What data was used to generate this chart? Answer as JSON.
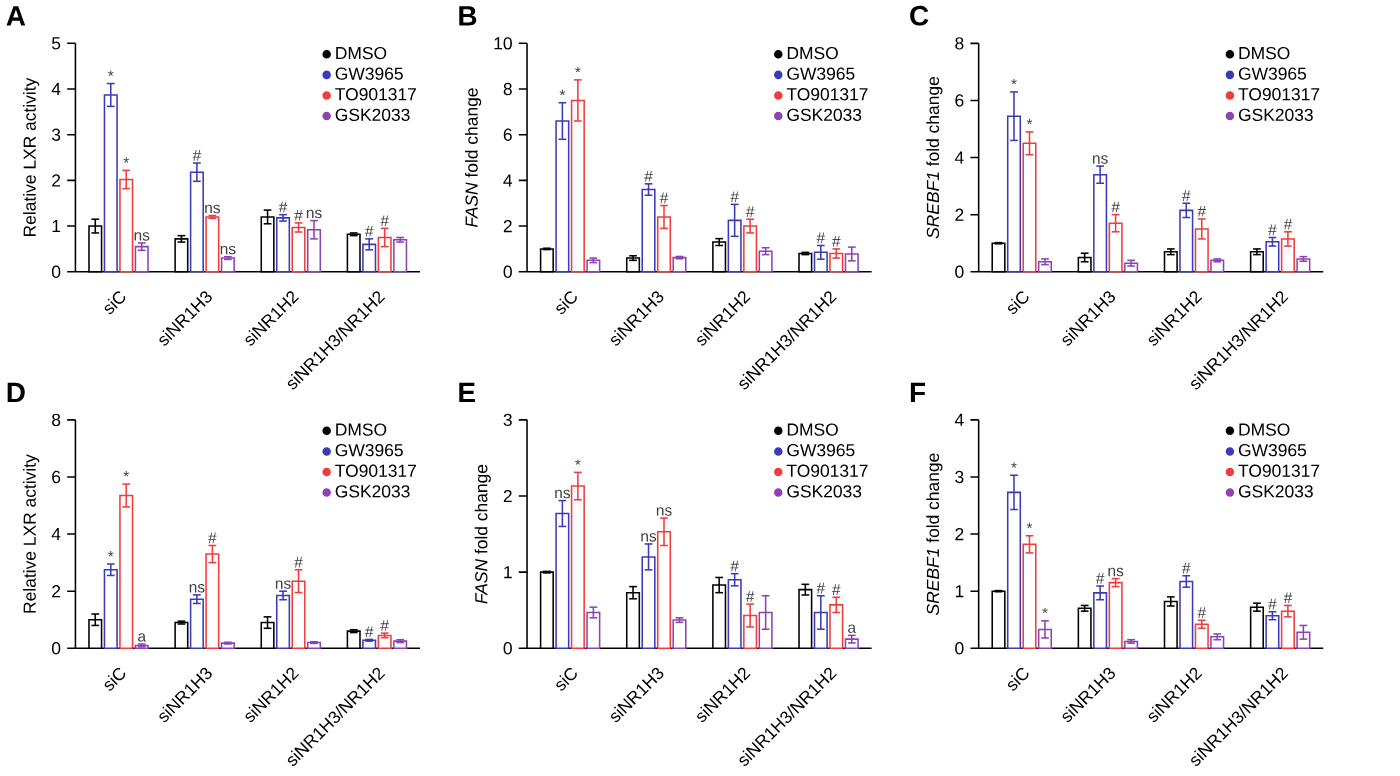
{
  "chart_data": [
    {
      "type": "bar",
      "title": "A",
      "ylabel": "Relative LXR activity",
      "categories": [
        "siC",
        "siNR1H3",
        "siNR1H2",
        "siNR1H3/NR1H2"
      ],
      "ylim": [
        0,
        5
      ],
      "yticks": [
        0,
        1,
        2,
        3,
        4,
        5
      ],
      "legend": "top right",
      "series": [
        {
          "name": "DMSO",
          "color": "#000000",
          "values": [
            1.0,
            0.72,
            1.2,
            0.82
          ],
          "errors": [
            0.15,
            0.07,
            0.15,
            0.03
          ]
        },
        {
          "name": "GW3965",
          "color": "#3b3bb8",
          "values": [
            3.87,
            2.18,
            1.18,
            0.6
          ],
          "errors": [
            0.25,
            0.2,
            0.07,
            0.12
          ],
          "value_labels": [
            "*",
            "#",
            "#",
            "#"
          ]
        },
        {
          "name": "TO901317",
          "color": "#f03c3c",
          "values": [
            2.02,
            1.2,
            0.97,
            0.75
          ],
          "errors": [
            0.2,
            0.03,
            0.1,
            0.2
          ],
          "value_labels": [
            "*",
            "ns",
            "#",
            "#"
          ]
        },
        {
          "name": "GSK2033",
          "color": "#8c44b4",
          "values": [
            0.55,
            0.3,
            0.92,
            0.7
          ],
          "errors": [
            0.08,
            0.03,
            0.2,
            0.05
          ],
          "value_labels": [
            "ns",
            "ns",
            "ns",
            null
          ]
        }
      ]
    },
    {
      "type": "bar",
      "title": "B",
      "ylabel": "*FASN* fold change",
      "categories": [
        "siC",
        "siNR1H3",
        "siNR1H2",
        "siNR1H3/NR1H2"
      ],
      "ylim": [
        0,
        10
      ],
      "yticks": [
        0,
        2,
        4,
        6,
        8,
        10
      ],
      "legend": "top right",
      "series": [
        {
          "name": "DMSO",
          "color": "#000000",
          "values": [
            1.0,
            0.6,
            1.3,
            0.8
          ],
          "errors": [
            0.03,
            0.1,
            0.15,
            0.05
          ]
        },
        {
          "name": "GW3965",
          "color": "#3b3bb8",
          "values": [
            6.6,
            3.6,
            2.25,
            0.85
          ],
          "errors": [
            0.8,
            0.25,
            0.7,
            0.3
          ],
          "value_labels": [
            "*",
            "#",
            "#",
            "#"
          ]
        },
        {
          "name": "TO901317",
          "color": "#f03c3c",
          "values": [
            7.5,
            2.4,
            2.0,
            0.8
          ],
          "errors": [
            0.9,
            0.5,
            0.3,
            0.2
          ],
          "value_labels": [
            "*",
            "#",
            "#",
            "#"
          ]
        },
        {
          "name": "GSK2033",
          "color": "#8c44b4",
          "values": [
            0.5,
            0.62,
            0.9,
            0.78
          ],
          "errors": [
            0.1,
            0.05,
            0.15,
            0.3
          ]
        }
      ]
    },
    {
      "type": "bar",
      "title": "C",
      "ylabel": "*SREBF1* fold change",
      "categories": [
        "siC",
        "siNR1H3",
        "siNR1H2",
        "siNR1H3/NR1H2"
      ],
      "ylim": [
        0,
        8
      ],
      "yticks": [
        0,
        2,
        4,
        6,
        8
      ],
      "legend": "top right",
      "series": [
        {
          "name": "DMSO",
          "color": "#000000",
          "values": [
            1.0,
            0.5,
            0.7,
            0.7
          ],
          "errors": [
            0.02,
            0.15,
            0.1,
            0.1
          ]
        },
        {
          "name": "GW3965",
          "color": "#3b3bb8",
          "values": [
            5.45,
            3.4,
            2.15,
            1.05
          ],
          "errors": [
            0.85,
            0.3,
            0.25,
            0.15
          ],
          "value_labels": [
            "*",
            "ns",
            "#",
            "#"
          ]
        },
        {
          "name": "TO901317",
          "color": "#f03c3c",
          "values": [
            4.5,
            1.7,
            1.5,
            1.15
          ],
          "errors": [
            0.4,
            0.3,
            0.35,
            0.25
          ],
          "value_labels": [
            "*",
            "#",
            "#",
            "#"
          ]
        },
        {
          "name": "GSK2033",
          "color": "#8c44b4",
          "values": [
            0.35,
            0.3,
            0.4,
            0.45
          ],
          "errors": [
            0.1,
            0.1,
            0.05,
            0.08
          ]
        }
      ]
    },
    {
      "type": "bar",
      "title": "D",
      "ylabel": "Relative LXR activity",
      "categories": [
        "siC",
        "siNR1H3",
        "siNR1H2",
        "siNR1H3/NR1H2"
      ],
      "ylim": [
        0,
        8
      ],
      "yticks": [
        0,
        2,
        4,
        6,
        8
      ],
      "legend": "top right",
      "series": [
        {
          "name": "DMSO",
          "color": "#000000",
          "values": [
            1.0,
            0.9,
            0.9,
            0.6
          ],
          "errors": [
            0.2,
            0.05,
            0.2,
            0.05
          ]
        },
        {
          "name": "GW3965",
          "color": "#3b3bb8",
          "values": [
            2.75,
            1.72,
            1.85,
            0.28
          ],
          "errors": [
            0.2,
            0.15,
            0.15,
            0.03
          ],
          "value_labels": [
            "*",
            "ns",
            "ns",
            "#"
          ]
        },
        {
          "name": "TO901317",
          "color": "#f03c3c",
          "values": [
            5.35,
            3.3,
            2.35,
            0.45
          ],
          "errors": [
            0.4,
            0.3,
            0.4,
            0.08
          ],
          "value_labels": [
            "*",
            "#",
            "#",
            "#"
          ]
        },
        {
          "name": "GSK2033",
          "color": "#8c44b4",
          "values": [
            0.1,
            0.18,
            0.2,
            0.25
          ],
          "errors": [
            0.05,
            0.03,
            0.03,
            0.05
          ],
          "value_labels": [
            "a",
            null,
            null,
            null
          ]
        }
      ]
    },
    {
      "type": "bar",
      "title": "E",
      "ylabel": "*FASN* fold change",
      "categories": [
        "siC",
        "siNR1H3",
        "siNR1H2",
        "siNR1H3/NR1H2"
      ],
      "ylim": [
        0,
        3
      ],
      "yticks": [
        0,
        1,
        2,
        3
      ],
      "legend": "top right",
      "series": [
        {
          "name": "DMSO",
          "color": "#000000",
          "values": [
            1.0,
            0.73,
            0.83,
            0.77
          ],
          "errors": [
            0.01,
            0.08,
            0.1,
            0.07
          ]
        },
        {
          "name": "GW3965",
          "color": "#3b3bb8",
          "values": [
            1.77,
            1.2,
            0.9,
            0.47
          ],
          "errors": [
            0.17,
            0.17,
            0.08,
            0.22
          ],
          "value_labels": [
            "ns",
            "ns",
            "#",
            "#"
          ]
        },
        {
          "name": "TO901317",
          "color": "#f03c3c",
          "values": [
            2.13,
            1.53,
            0.43,
            0.57
          ],
          "errors": [
            0.18,
            0.18,
            0.15,
            0.1
          ],
          "value_labels": [
            "*",
            "ns",
            "#",
            "#"
          ]
        },
        {
          "name": "GSK2033",
          "color": "#8c44b4",
          "values": [
            0.47,
            0.37,
            0.47,
            0.12
          ],
          "errors": [
            0.07,
            0.03,
            0.22,
            0.05
          ],
          "value_labels": [
            null,
            null,
            null,
            "a"
          ]
        }
      ]
    },
    {
      "type": "bar",
      "title": "F",
      "ylabel": "*SREBF1* fold change",
      "categories": [
        "siC",
        "siNR1H3",
        "siNR1H2",
        "siNR1H3/NR1H2"
      ],
      "ylim": [
        0,
        4
      ],
      "yticks": [
        0,
        1,
        2,
        3,
        4
      ],
      "legend": "top right",
      "series": [
        {
          "name": "DMSO",
          "color": "#000000",
          "values": [
            1.0,
            0.7,
            0.82,
            0.72
          ],
          "errors": [
            0.01,
            0.05,
            0.08,
            0.07
          ]
        },
        {
          "name": "GW3965",
          "color": "#3b3bb8",
          "values": [
            2.73,
            0.97,
            1.17,
            0.57
          ],
          "errors": [
            0.3,
            0.12,
            0.1,
            0.07
          ],
          "value_labels": [
            "*",
            "#",
            "#",
            "#"
          ]
        },
        {
          "name": "TO901317",
          "color": "#f03c3c",
          "values": [
            1.82,
            1.15,
            0.42,
            0.65
          ],
          "errors": [
            0.15,
            0.07,
            0.07,
            0.1
          ],
          "value_labels": [
            "*",
            "ns",
            "#",
            "#"
          ]
        },
        {
          "name": "GSK2033",
          "color": "#8c44b4",
          "values": [
            0.33,
            0.12,
            0.2,
            0.28
          ],
          "errors": [
            0.15,
            0.03,
            0.05,
            0.12
          ],
          "value_labels": [
            "*",
            null,
            null,
            null
          ]
        }
      ]
    }
  ]
}
